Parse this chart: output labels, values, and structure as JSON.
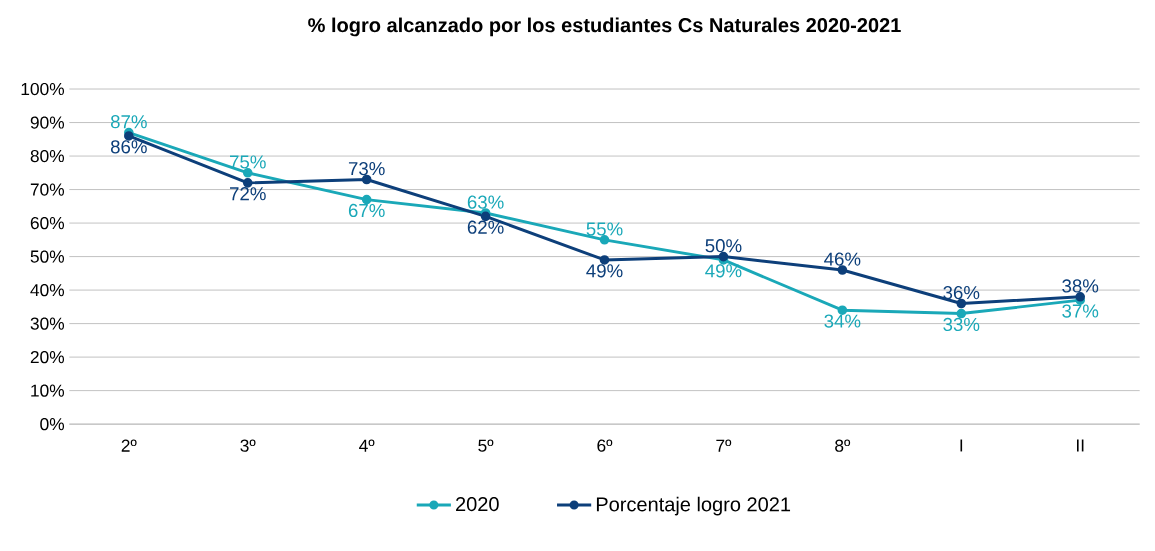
{
  "chart_data": {
    "type": "line",
    "title": "% logro alcanzado por los estudiantes Cs Naturales 2020-2021",
    "categories": [
      "2º",
      "3º",
      "4º",
      "5º",
      "6º",
      "7º",
      "8º",
      "I",
      "II"
    ],
    "series": [
      {
        "name": "2020",
        "color": "#1aa8b8",
        "values": [
          87,
          75,
          67,
          63,
          55,
          49,
          34,
          33,
          37
        ],
        "value_labels": [
          "87%",
          "75%",
          "67%",
          "63%",
          "55%",
          "49%",
          "34%",
          "33%",
          "37%"
        ]
      },
      {
        "name": "Porcentaje logro 2021",
        "color": "#0d3f7a",
        "values": [
          86,
          72,
          73,
          62,
          49,
          50,
          46,
          36,
          38
        ],
        "value_labels": [
          "86%",
          "72%",
          "73%",
          "62%",
          "49%",
          "50%",
          "46%",
          "36%",
          "38%"
        ]
      }
    ],
    "ylim": [
      0,
      100
    ],
    "yticks": [
      {
        "value": 0,
        "label": "0%"
      },
      {
        "value": 10,
        "label": "10%"
      },
      {
        "value": 20,
        "label": "20%"
      },
      {
        "value": 30,
        "label": "30%"
      },
      {
        "value": 40,
        "label": "40%"
      },
      {
        "value": 50,
        "label": "50%"
      },
      {
        "value": 60,
        "label": "60%"
      },
      {
        "value": 70,
        "label": "70%"
      },
      {
        "value": 80,
        "label": "80%"
      },
      {
        "value": 90,
        "label": "90%"
      },
      {
        "value": 100,
        "label": "100%"
      }
    ],
    "grid": "y",
    "legend": "bottom",
    "marker": "circle",
    "line_style": "solid"
  }
}
